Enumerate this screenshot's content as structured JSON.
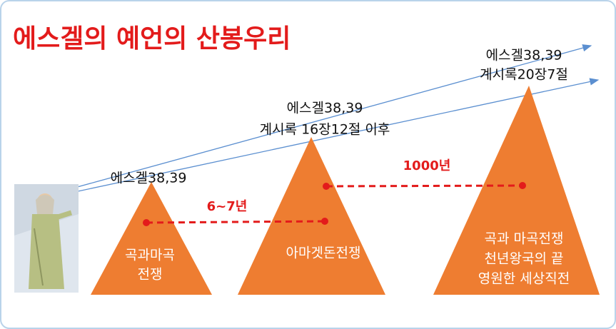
{
  "title": "에스겔의 예언의 산봉우리",
  "mountains": [
    {
      "top_labels": [
        "에스겔38,39"
      ],
      "label_lines": [
        "곡과마곡",
        "전쟁"
      ]
    },
    {
      "top_labels": [
        "에스겔38,39",
        "계시록 16장12절 이후"
      ],
      "label_lines": [
        "아마겟돈전쟁"
      ]
    },
    {
      "top_labels": [
        "에스겔38,39",
        "계시록20장7절"
      ],
      "label_lines": [
        "곡과 마곡전쟁",
        "천년왕국의 끝",
        "영원한 세상직전"
      ]
    }
  ],
  "intervals": [
    {
      "label": "6~7년"
    },
    {
      "label": "1000년"
    }
  ]
}
